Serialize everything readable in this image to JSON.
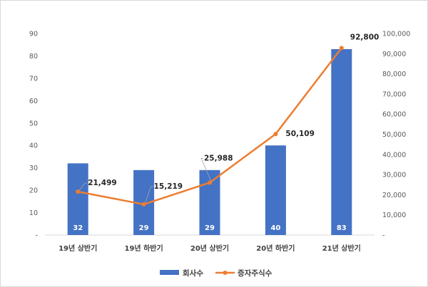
{
  "chart_data": {
    "type": "bar",
    "categories": [
      "19년 상반기",
      "19년 하반기",
      "20년 상반기",
      "20년 하반기",
      "21년 상반기"
    ],
    "series": [
      {
        "name": "회사수",
        "type": "bar",
        "axis": "left",
        "values": [
          32,
          29,
          29,
          40,
          83
        ],
        "color": "#4472c4",
        "labels": [
          "32",
          "29",
          "29",
          "40",
          "83"
        ]
      },
      {
        "name": "증자주식수",
        "type": "line",
        "axis": "right",
        "values": [
          21499,
          15219,
          25988,
          50109,
          92800
        ],
        "color": "#ed7d31",
        "labels": [
          "21,499",
          "15,219",
          "25,988",
          "50,109",
          "92,800"
        ]
      }
    ],
    "left_axis": {
      "ylim": [
        0,
        90
      ],
      "ticks": [
        "-",
        "10",
        "20",
        "30",
        "40",
        "50",
        "60",
        "70",
        "80",
        "90"
      ]
    },
    "right_axis": {
      "ylim": [
        0,
        100000
      ],
      "ticks": [
        "-",
        "10,000",
        "20,000",
        "30,000",
        "40,000",
        "50,000",
        "60,000",
        "70,000",
        "80,000",
        "90,000",
        "100,000"
      ]
    },
    "grid": false,
    "legend": "bottom-center"
  }
}
